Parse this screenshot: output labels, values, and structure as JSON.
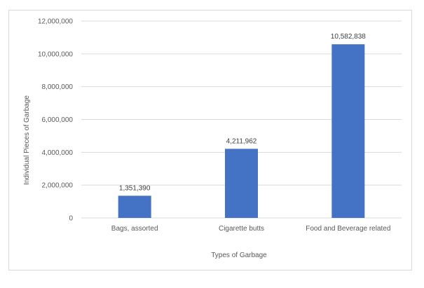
{
  "chart_data": {
    "type": "bar",
    "categories": [
      "Bags, assorted",
      "Cigarette butts",
      "Food and Beverage related"
    ],
    "values": [
      1351390,
      4211962,
      10582838
    ],
    "data_labels": [
      "1,351,390",
      "4,211,962",
      "10,582,838"
    ],
    "xlabel": "Types of Garbage",
    "ylabel": "Individual Pieces of Garbage",
    "ylim": [
      0,
      12000000
    ],
    "yticks": [
      0,
      2000000,
      4000000,
      6000000,
      8000000,
      10000000,
      12000000
    ],
    "ytick_labels": [
      "0",
      "2,000,000",
      "4,000,000",
      "6,000,000",
      "8,000,000",
      "10,000,000",
      "12,000,000"
    ],
    "grid": true,
    "legend": "none",
    "bar_color": "#4472c4",
    "grid_color": "#d9d9d9"
  }
}
